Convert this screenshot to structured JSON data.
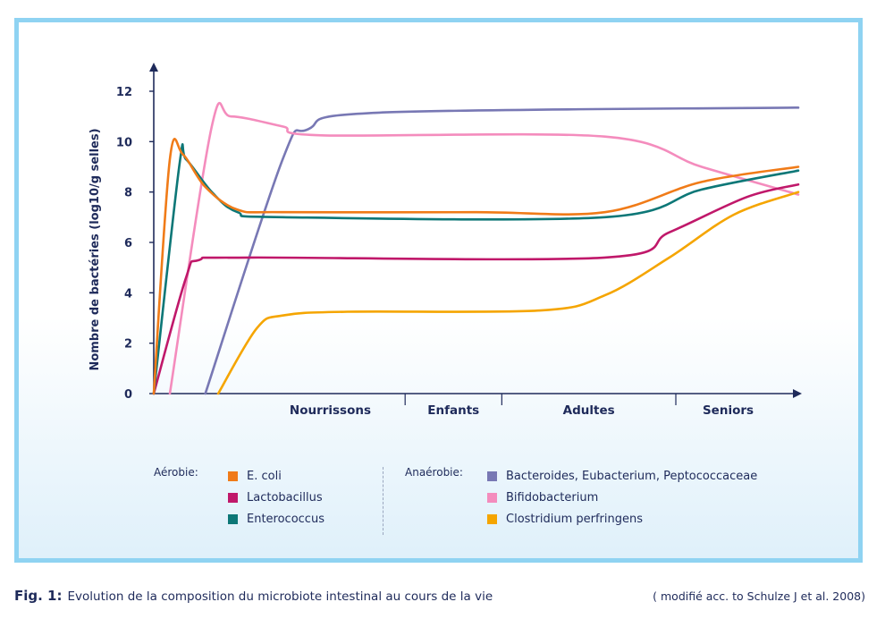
{
  "chart_data": {
    "type": "line",
    "ylabel": "Nombre de bactéries (log10/g selles)",
    "ylim": [
      0,
      12
    ],
    "yticks": [
      0,
      2,
      4,
      6,
      8,
      10,
      12
    ],
    "stages": [
      "Nourrissons",
      "Enfants",
      "Adultes",
      "Seniors"
    ],
    "x_domain": [
      0,
      100
    ],
    "x_note_ticks": [
      0,
      39,
      54,
      81,
      100
    ],
    "series": [
      {
        "name": "E. coli",
        "group": "aerobic",
        "color": "#f07b18",
        "points": [
          [
            0,
            0
          ],
          [
            2.5,
            9.3
          ],
          [
            4.5,
            9.5
          ],
          [
            8,
            8.2
          ],
          [
            13,
            7.3
          ],
          [
            20,
            7.2
          ],
          [
            50,
            7.2
          ],
          [
            70,
            7.2
          ],
          [
            85,
            8.4
          ],
          [
            100,
            9.0
          ]
        ]
      },
      {
        "name": "Lactobacillus",
        "group": "aerobic",
        "color": "#c0186a",
        "points": [
          [
            0,
            0
          ],
          [
            5,
            4.6
          ],
          [
            7,
            5.3
          ],
          [
            15,
            5.4
          ],
          [
            70,
            5.4
          ],
          [
            80,
            6.4
          ],
          [
            92,
            7.8
          ],
          [
            100,
            8.3
          ]
        ]
      },
      {
        "name": "Enterococcus",
        "group": "aerobic",
        "color": "#0d7777",
        "points": [
          [
            0,
            0
          ],
          [
            4,
            9.1
          ],
          [
            5,
            9.3
          ],
          [
            9,
            8.0
          ],
          [
            13,
            7.2
          ],
          [
            20,
            7.0
          ],
          [
            70,
            7.0
          ],
          [
            85,
            8.1
          ],
          [
            100,
            8.85
          ]
        ]
      },
      {
        "name": "Bacteroides, Eubacterium, Peptococcaceae",
        "group": "anaerobic",
        "color": "#7878b4",
        "points": [
          [
            8,
            0
          ],
          [
            20,
            9.3
          ],
          [
            24,
            10.5
          ],
          [
            35,
            11.15
          ],
          [
            100,
            11.35
          ]
        ]
      },
      {
        "name": "Bifidobacterium",
        "group": "anaerobic",
        "color": "#f48cbd",
        "points": [
          [
            2.5,
            0
          ],
          [
            9,
            10.6
          ],
          [
            12,
            11.0
          ],
          [
            20,
            10.6
          ],
          [
            26,
            10.25
          ],
          [
            70,
            10.2
          ],
          [
            85,
            9.0
          ],
          [
            100,
            7.9
          ]
        ]
      },
      {
        "name": "Clostridium perfringens",
        "group": "anaerobic",
        "color": "#f5a500",
        "points": [
          [
            10,
            0
          ],
          [
            16,
            2.6
          ],
          [
            20,
            3.1
          ],
          [
            30,
            3.25
          ],
          [
            60,
            3.3
          ],
          [
            70,
            3.9
          ],
          [
            80,
            5.4
          ],
          [
            90,
            7.1
          ],
          [
            100,
            8.0
          ]
        ]
      }
    ]
  },
  "legend": {
    "aerobic_heading": "Aérobie:",
    "anaerobic_heading": "Anaérobie:"
  },
  "caption": {
    "fig_label": "Fig. 1:",
    "text": "Evolution de la composition du microbiote intestinal au cours de la vie",
    "source": "( modifié acc. to Schulze J et al. 2008)"
  },
  "colors": {
    "frame": "#8fd3f2",
    "axis": "#1e2a5a"
  }
}
